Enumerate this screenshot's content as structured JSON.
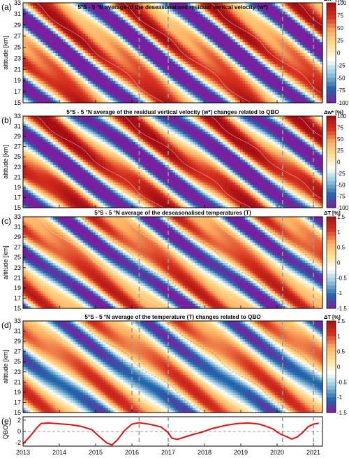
{
  "figure": {
    "x_ticks": [
      "2013",
      "2014",
      "2015",
      "2016",
      "2017",
      "2018",
      "2019",
      "2020",
      "2021"
    ],
    "x_range": [
      2013,
      2021.25
    ],
    "event_lines": [
      2016.2,
      2017.0,
      2020.15,
      2021.0
    ],
    "panel_d_extra_line": 2016.0,
    "colors": {
      "accent_line": "#dd1111",
      "dashed_guides": "#999999"
    }
  },
  "chart_data": [
    {
      "type": "heatmap",
      "panel_label": "(a)",
      "title": "5°S - 5 °N average of the deseasonalised residual vertical velocity (w*)",
      "ylabel": "altitude [km]",
      "y_ticks": [
        15,
        17,
        19,
        21,
        23,
        25,
        27,
        29,
        31,
        33
      ],
      "ylim": [
        15,
        33
      ],
      "colorbar_label": "Δw* [%]",
      "colorbar_ticks": [
        100,
        75,
        50,
        25,
        0,
        -25,
        -50,
        -75,
        -100
      ],
      "clim": [
        -100,
        100
      ],
      "colorscale": [
        "#7b1fa2",
        "#2166ac",
        "#92c5de",
        "#ffffff",
        "#fee090",
        "#fdae61",
        "#d7301f",
        "#a50f15"
      ],
      "field_params": {
        "amp": 1.0,
        "phase": 0.0,
        "harm": 0.35
      }
    },
    {
      "type": "heatmap",
      "panel_label": "(b)",
      "title": "5°S - 5 °N average of the residual vertical velocity (w*) changes related to QBO",
      "ylabel": "altitude [km]",
      "y_ticks": [
        15,
        17,
        19,
        21,
        23,
        25,
        27,
        29,
        31,
        33
      ],
      "ylim": [
        15,
        33
      ],
      "colorbar_label": "Δw* [%]",
      "colorbar_ticks": [
        100,
        75,
        50,
        25,
        0,
        -25,
        -50,
        -75,
        -100
      ],
      "clim": [
        -100,
        100
      ],
      "colorscale": [
        "#7b1fa2",
        "#2166ac",
        "#92c5de",
        "#ffffff",
        "#fee090",
        "#fdae61",
        "#d7301f",
        "#a50f15"
      ],
      "field_params": {
        "amp": 1.05,
        "phase": 0.3,
        "harm": 0.15
      }
    },
    {
      "type": "heatmap",
      "panel_label": "(c)",
      "title": "5°S - 5 °N average of the deseasonalised temperatures (T)",
      "ylabel": "altitude [km]",
      "y_ticks": [
        15,
        17,
        19,
        21,
        23,
        25,
        27,
        29,
        31,
        33
      ],
      "ylim": [
        15,
        33
      ],
      "colorbar_label": "ΔT [%]",
      "colorbar_ticks": [
        1.5,
        1,
        0.5,
        0,
        -0.5,
        -1,
        -1.5
      ],
      "clim": [
        -1.5,
        1.5
      ],
      "colorscale": [
        "#7b1fa2",
        "#2166ac",
        "#92c5de",
        "#ffffff",
        "#fee090",
        "#fdae61",
        "#d7301f",
        "#a50f15"
      ],
      "field_params": {
        "amp": 0.85,
        "phase": 2.0,
        "harm": 0.3
      }
    },
    {
      "type": "heatmap",
      "panel_label": "(d)",
      "title": "5°S - 5 °N average of the temperature (T) changes related to QBO",
      "ylabel": "altitude [km]",
      "y_ticks": [
        15,
        17,
        19,
        21,
        23,
        25,
        27,
        29,
        31,
        33
      ],
      "ylim": [
        15,
        33
      ],
      "colorbar_label": "ΔT [%]",
      "colorbar_ticks": [
        1.5,
        1,
        0.5,
        0,
        -0.5,
        -1,
        -1.5
      ],
      "clim": [
        -1.5,
        1.5
      ],
      "colorscale": [
        "#7b1fa2",
        "#2166ac",
        "#92c5de",
        "#ffffff",
        "#fee090",
        "#fdae61",
        "#d7301f",
        "#a50f15"
      ],
      "field_params": {
        "amp": 0.75,
        "phase": 2.2,
        "harm": 0.15
      }
    },
    {
      "type": "line",
      "panel_label": "(e)",
      "ylabel": "QBOi",
      "y_ticks": [
        2,
        0,
        -2
      ],
      "ylim": [
        -2.6,
        2.6
      ],
      "zero_line": true,
      "series": [
        {
          "color": "#dd1111",
          "x": [
            2013.0,
            2013.2,
            2013.4,
            2013.5,
            2013.7,
            2014.0,
            2014.3,
            2014.6,
            2014.9,
            2015.1,
            2015.3,
            2015.45,
            2015.6,
            2015.8,
            2016.0,
            2016.2,
            2016.5,
            2016.8,
            2017.0,
            2017.1,
            2017.25,
            2017.4,
            2017.55,
            2017.7,
            2017.9,
            2018.2,
            2018.6,
            2018.9,
            2019.2,
            2019.5,
            2019.7,
            2019.9,
            2020.0,
            2020.1,
            2020.25,
            2020.4,
            2020.55,
            2020.7,
            2020.85,
            2021.0,
            2021.15
          ],
          "y": [
            -2.2,
            -0.8,
            0.8,
            1.4,
            1.5,
            1.35,
            1.2,
            0.9,
            0.3,
            -0.9,
            -2.0,
            -2.4,
            -1.5,
            0.2,
            1.3,
            1.55,
            1.25,
            0.8,
            -0.2,
            -1.2,
            -1.4,
            -1.1,
            -0.8,
            -0.5,
            -0.2,
            0.5,
            1.1,
            1.4,
            1.5,
            1.3,
            0.9,
            0.4,
            -0.1,
            -0.5,
            -0.9,
            -1.35,
            -1.0,
            -0.2,
            0.8,
            1.3,
            1.45
          ]
        }
      ]
    }
  ]
}
